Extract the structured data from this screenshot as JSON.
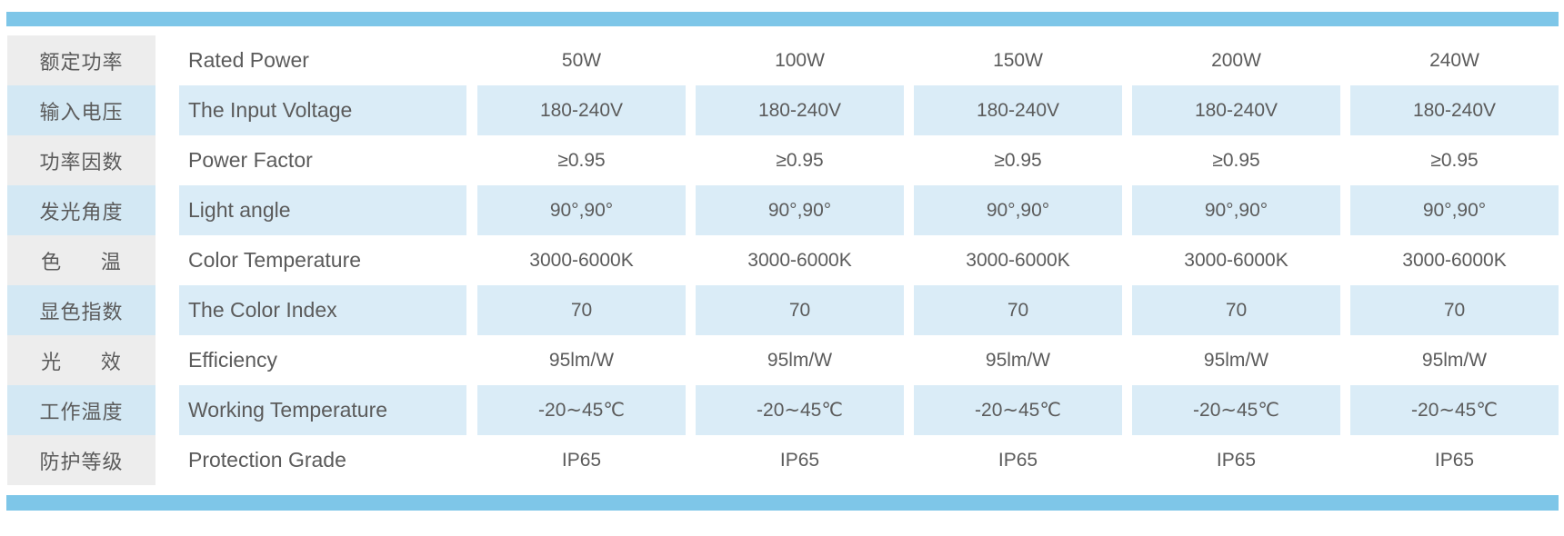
{
  "colors": {
    "accent_bar": "#7EC6E8",
    "row_highlight": "#DAECF7",
    "label_highlight": "#D3E8F4",
    "label_neutral": "#EDEDED",
    "text": "#5B5B5B",
    "background": "#FFFFFF"
  },
  "table": {
    "rows": [
      {
        "label_cn": "额定功率",
        "label_en": "Rated Power",
        "values": [
          "50W",
          "100W",
          "150W",
          "200W",
          "240W"
        ],
        "highlight": false
      },
      {
        "label_cn": "输入电压",
        "label_en": "The Input Voltage",
        "values": [
          "180-240V",
          "180-240V",
          "180-240V",
          "180-240V",
          "180-240V"
        ],
        "highlight": true
      },
      {
        "label_cn": "功率因数",
        "label_en": "Power Factor",
        "values": [
          "≥0.95",
          "≥0.95",
          "≥0.95",
          "≥0.95",
          "≥0.95"
        ],
        "highlight": false
      },
      {
        "label_cn": "发光角度",
        "label_en": "Light angle",
        "values": [
          "90°,90°",
          "90°,90°",
          "90°,90°",
          "90°,90°",
          "90°,90°"
        ],
        "highlight": true
      },
      {
        "label_cn": "色      温",
        "label_en": "Color Temperature",
        "values": [
          "3000-6000K",
          "3000-6000K",
          "3000-6000K",
          "3000-6000K",
          "3000-6000K"
        ],
        "highlight": false
      },
      {
        "label_cn": "显色指数",
        "label_en": "The Color Index",
        "values": [
          "70",
          "70",
          "70",
          "70",
          "70"
        ],
        "highlight": true
      },
      {
        "label_cn": "光      效",
        "label_en": "Efficiency",
        "values": [
          "95lm/W",
          "95lm/W",
          "95lm/W",
          "95lm/W",
          "95lm/W"
        ],
        "highlight": false
      },
      {
        "label_cn": "工作温度",
        "label_en": "Working Temperature",
        "values": [
          "-20∼45℃",
          "-20∼45℃",
          "-20∼45℃",
          "-20∼45℃",
          "-20∼45℃"
        ],
        "highlight": true
      },
      {
        "label_cn": "防护等级",
        "label_en": "Protection Grade",
        "values": [
          "IP65",
          "IP65",
          "IP65",
          "IP65",
          "IP65"
        ],
        "highlight": false
      }
    ]
  }
}
